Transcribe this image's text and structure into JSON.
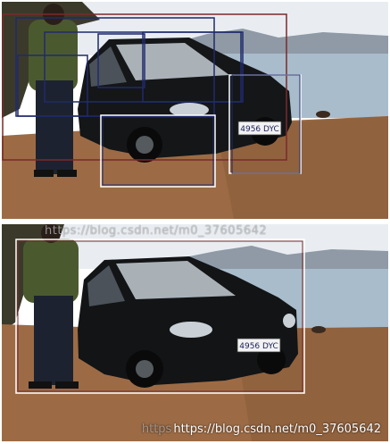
{
  "watermark_top": "https://blog.csdn.net/m0_37605642",
  "watermark_bottom": "https://blog.csdn.net/m0_37605642",
  "watermark_bottom_ghost": "https",
  "plate_text": "4956 DYC",
  "colors": {
    "sky": "#e9edf2",
    "sea": "#9fb5c6",
    "hills": "#8f9aa6",
    "ground": "#9c6b45",
    "car": "#121416",
    "box_dark": "#1f2a6b",
    "box_red": "#7a2a2a",
    "box_white": "#ffffff"
  }
}
